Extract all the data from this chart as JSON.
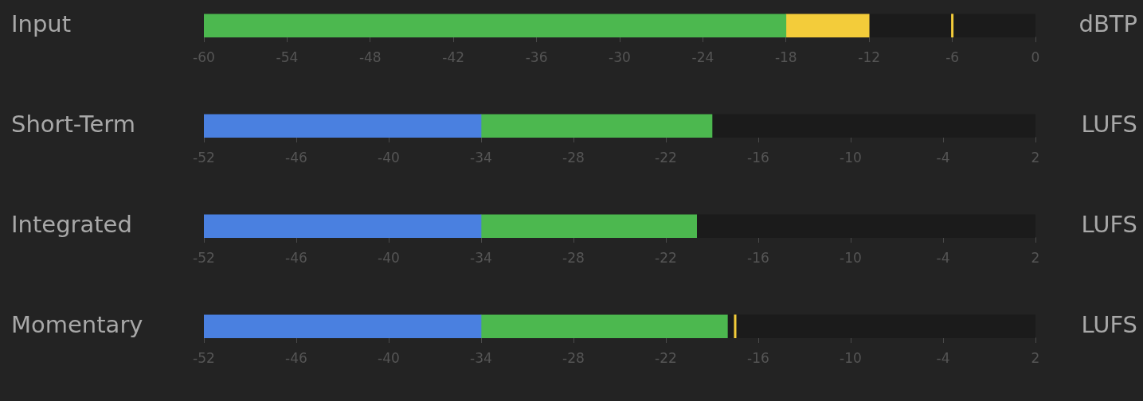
{
  "chart_data": [
    {
      "type": "bar",
      "orientation": "horizontal",
      "categories": [
        "Input"
      ],
      "xlabel": "dBTP",
      "xlim": [
        -60,
        0
      ],
      "xticks": [
        -60,
        -54,
        -48,
        -42,
        -36,
        -30,
        -24,
        -18,
        -12,
        -6,
        0
      ],
      "grid": false,
      "legend": false,
      "series": [
        {
          "color": "#4cb84f",
          "base": [
            -60
          ],
          "values": [
            42
          ]
        },
        {
          "color": "#f3cc3a",
          "base": [
            -18
          ],
          "values": [
            6
          ]
        }
      ],
      "ref_lines": [
        {
          "axis": "x",
          "value": -6,
          "color": "#f3cc3a"
        }
      ]
    },
    {
      "type": "bar",
      "orientation": "horizontal",
      "categories": [
        "Short-Term"
      ],
      "xlabel": "LUFS",
      "xlim": [
        -52,
        2
      ],
      "xticks": [
        -52,
        -46,
        -40,
        -34,
        -28,
        -22,
        -16,
        -10,
        -4,
        2
      ],
      "grid": false,
      "legend": false,
      "series": [
        {
          "color": "#4a80e0",
          "base": [
            -52
          ],
          "values": [
            18
          ]
        },
        {
          "color": "#4cb84f",
          "base": [
            -34
          ],
          "values": [
            15
          ]
        }
      ]
    },
    {
      "type": "bar",
      "orientation": "horizontal",
      "categories": [
        "Integrated"
      ],
      "xlabel": "LUFS",
      "xlim": [
        -52,
        2
      ],
      "xticks": [
        -52,
        -46,
        -40,
        -34,
        -28,
        -22,
        -16,
        -10,
        -4,
        2
      ],
      "grid": false,
      "legend": false,
      "series": [
        {
          "color": "#4a80e0",
          "base": [
            -52
          ],
          "values": [
            18
          ]
        },
        {
          "color": "#4cb84f",
          "base": [
            -34
          ],
          "values": [
            14
          ]
        }
      ]
    },
    {
      "type": "bar",
      "orientation": "horizontal",
      "categories": [
        "Momentary"
      ],
      "xlabel": "LUFS",
      "xlim": [
        -52,
        2
      ],
      "xticks": [
        -52,
        -46,
        -40,
        -34,
        -28,
        -22,
        -16,
        -10,
        -4,
        2
      ],
      "grid": false,
      "legend": false,
      "series": [
        {
          "color": "#4a80e0",
          "base": [
            -52
          ],
          "values": [
            18
          ]
        },
        {
          "color": "#4cb84f",
          "base": [
            -34
          ],
          "values": [
            16
          ]
        }
      ],
      "ref_lines": [
        {
          "axis": "x",
          "value": -17.5,
          "color": "#f3cc3a"
        }
      ]
    }
  ]
}
